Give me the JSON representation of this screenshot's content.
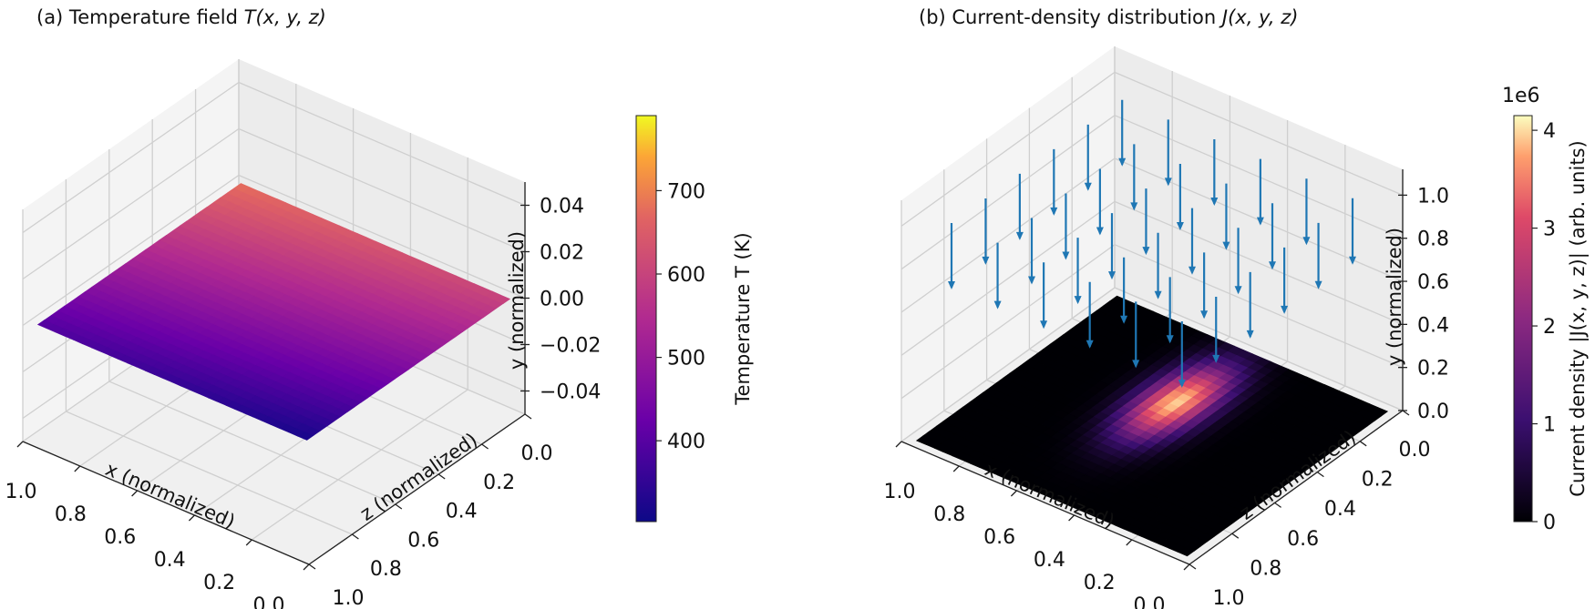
{
  "chart_data": [
    {
      "type": "surface3d",
      "title_prefix": "(a) Temperature field ",
      "title_math": "T(x, y, z)",
      "xlabel": "x (normalized)",
      "ylabel": "y (normalized)",
      "zlabel": "z (normalized)",
      "xlim": [
        0,
        1
      ],
      "ylim": [
        -0.05,
        0.05
      ],
      "zlim": [
        0,
        1
      ],
      "xticks": [
        "1.0",
        "0.8",
        "0.6",
        "0.4",
        "0.2",
        "0.0"
      ],
      "xtick_values": [
        1.0,
        0.8,
        0.6,
        0.4,
        0.2,
        0.0
      ],
      "zticks": [
        "0.0",
        "0.2",
        "0.4",
        "0.6",
        "0.8",
        "1.0"
      ],
      "ztick_values": [
        0.0,
        0.2,
        0.4,
        0.6,
        0.8,
        1.0
      ],
      "yticks": [
        "0.04",
        "0.02",
        "0.00",
        "−0.02",
        "−0.04"
      ],
      "ytick_values": [
        0.04,
        0.02,
        0.0,
        -0.02,
        -0.04
      ],
      "surface": {
        "y": 0.0,
        "T_min": 303,
        "T_max": 790,
        "trend": "T increases toward z=0 and x=1"
      },
      "colormap": "plasma",
      "grid": true,
      "colorbar": {
        "label": "Temperature T (K)",
        "range": [
          303,
          790
        ],
        "ticks": [
          "400",
          "500",
          "600",
          "700"
        ],
        "tick_values": [
          400,
          500,
          600,
          700
        ]
      }
    },
    {
      "type": "quiver3d+heatmap",
      "title_prefix": "(b) Current-density distribution ",
      "title_math": "J(x, y, z)",
      "xlabel": "x (normalized)",
      "ylabel": "y (normalized)",
      "zlabel": "z (normalized)",
      "xlim": [
        0,
        1
      ],
      "ylim": [
        0,
        1.12
      ],
      "zlim": [
        0,
        1
      ],
      "xticks": [
        "1.0",
        "0.8",
        "0.6",
        "0.4",
        "0.2",
        "0.0"
      ],
      "xtick_values": [
        1.0,
        0.8,
        0.6,
        0.4,
        0.2,
        0.0
      ],
      "zticks": [
        "0.0",
        "0.2",
        "0.4",
        "0.6",
        "0.8",
        "1.0"
      ],
      "ztick_values": [
        0.0,
        0.2,
        0.4,
        0.6,
        0.8,
        1.0
      ],
      "yticks": [
        "1.0",
        "0.8",
        "0.6",
        "0.4",
        "0.2",
        "0.0"
      ],
      "ytick_values": [
        1.0,
        0.8,
        0.6,
        0.4,
        0.2,
        0.0
      ],
      "quiver": {
        "x": [
          0.1,
          0.26,
          0.42,
          0.58,
          0.74,
          0.9
        ],
        "z": [
          0.1,
          0.26,
          0.42,
          0.58,
          0.74,
          0.9
        ],
        "y_tail": 1.0,
        "length": 0.3,
        "direction": "-y",
        "color": "#1f77b4"
      },
      "heatmap": {
        "plane": "y=0",
        "center_x": 0.52,
        "center_z": 0.36,
        "sigma_x": 0.07,
        "sigma_z": 0.16,
        "max": 4150000
      },
      "colormap": "magma",
      "grid": true,
      "colorbar": {
        "label": "Current density |J(x, y, z)| (arb. units)",
        "multiplier": "1e6",
        "range": [
          0,
          4.15
        ],
        "ticks": [
          "0",
          "1",
          "2",
          "3",
          "4"
        ],
        "tick_values": [
          0,
          1,
          2,
          3,
          4
        ]
      }
    }
  ]
}
